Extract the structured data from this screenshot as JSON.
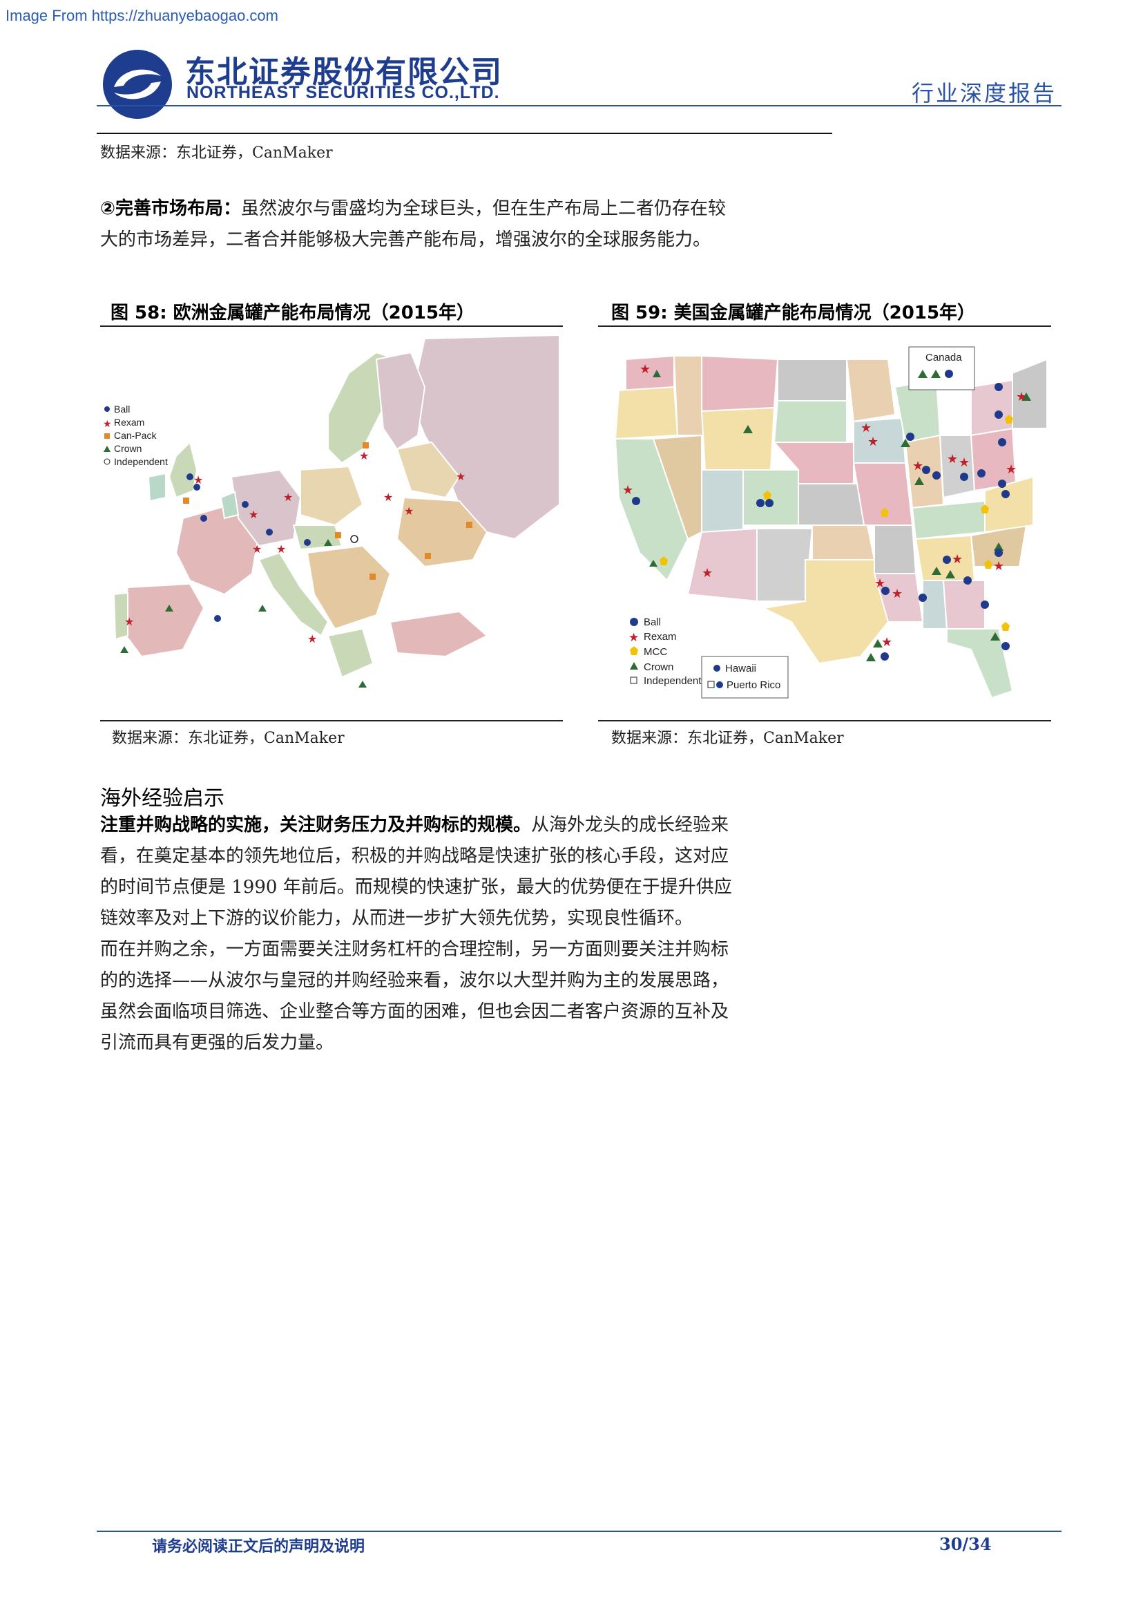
{
  "watermark": "Image From https://zhuanyebaogao.com",
  "header": {
    "company_cn": "东北证券股份有限公司",
    "company_en": "NORTHEAST SECURITIES CO.,LTD.",
    "report_type": "行业深度报告"
  },
  "top_source": "数据来源：东北证券，CanMaker",
  "para1": {
    "bold": "②完善市场布局：",
    "line1": "虽然波尔与雷盛均为全球巨头，但在生产布局上二者仍存在较",
    "line2": "大的市场差异，二者合并能够极大完善产能布局，增强波尔的全球服务能力。"
  },
  "fig58": {
    "title": "图 58: 欧洲金属罐产能布局情况（2015年）",
    "source": "数据来源：东北证券，CanMaker",
    "legend": [
      "Ball",
      "Rexam",
      "Can-Pack",
      "Crown",
      "Independent"
    ]
  },
  "fig59": {
    "title": "图 59: 美国金属罐产能布局情况（2015年）",
    "source": "数据来源：东北证券，CanMaker",
    "legend": [
      "Ball",
      "Rexam",
      "MCC",
      "Crown",
      "Independent"
    ],
    "inset_canada": "Canada",
    "inset_hawaii": "Hawaii",
    "inset_pr": "Puerto Rico",
    "colors": {
      "ball": "#1f3a8a",
      "rexam": "#c0202a",
      "mcc": "#f2c20a",
      "crown": "#2e6b35"
    }
  },
  "section_heading": "海外经验启示",
  "para2": {
    "bold": "注重并购战略的实施，关注财务压力及并购标的规模。",
    "lines": [
      "从海外龙头的成长经验来",
      "看，在奠定基本的领先地位后，积极的并购战略是快速扩张的核心手段，这对应",
      "的时间节点便是 1990 年前后。而规模的快速扩张，最大的优势便在于提升供应",
      "链效率及对上下游的议价能力，从而进一步扩大领先优势，实现良性循环。"
    ]
  },
  "para3": {
    "lines": [
      "而在并购之余，一方面需要关注财务杠杆的合理控制，另一方面则要关注并购标",
      "的的选择——从波尔与皇冠的并购经验来看，波尔以大型并购为主的发展思路，",
      "虽然会面临项目筛选、企业整合等方面的困难，但也会因二者客户资源的互补及",
      "引流而具有更强的后发力量。"
    ]
  },
  "footer": {
    "disclaimer": "请务必阅读正文后的声明及说明",
    "page": "30/34"
  }
}
